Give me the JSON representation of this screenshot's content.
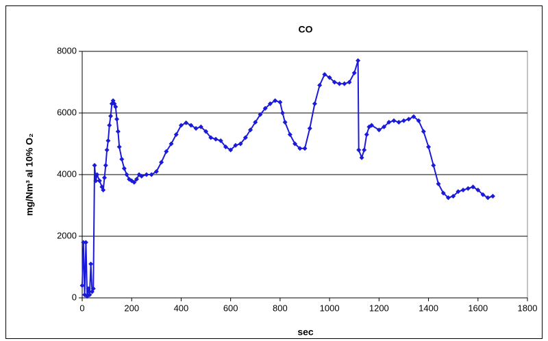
{
  "chart_data": {
    "type": "line",
    "title": "CO",
    "x_label": "sec",
    "y_label": "mg/Nm³ al 10% O₂",
    "x": [
      0,
      5,
      10,
      15,
      20,
      25,
      30,
      35,
      40,
      45,
      50,
      55,
      60,
      70,
      80,
      85,
      90,
      95,
      100,
      105,
      110,
      115,
      120,
      125,
      130,
      135,
      140,
      145,
      150,
      160,
      170,
      180,
      190,
      200,
      210,
      220,
      230,
      240,
      260,
      280,
      300,
      320,
      340,
      360,
      380,
      400,
      420,
      440,
      460,
      480,
      500,
      520,
      540,
      560,
      580,
      600,
      620,
      640,
      660,
      680,
      700,
      720,
      740,
      760,
      780,
      800,
      810,
      820,
      840,
      860,
      880,
      900,
      920,
      940,
      960,
      980,
      1000,
      1020,
      1040,
      1060,
      1080,
      1100,
      1115,
      1118,
      1130,
      1140,
      1150,
      1160,
      1170,
      1200,
      1220,
      1240,
      1260,
      1280,
      1300,
      1320,
      1340,
      1360,
      1380,
      1400,
      1420,
      1440,
      1460,
      1480,
      1500,
      1520,
      1540,
      1560,
      1580,
      1600,
      1620,
      1640,
      1660
    ],
    "series": [
      {
        "name": "CO",
        "color": "#1a1ad8",
        "values": [
          400,
          1800,
          100,
          1800,
          50,
          300,
          100,
          1100,
          200,
          300,
          4300,
          3800,
          4000,
          3800,
          3600,
          3500,
          3900,
          4300,
          4800,
          5100,
          5600,
          5900,
          6300,
          6400,
          6300,
          6200,
          5800,
          5400,
          4900,
          4500,
          4200,
          4000,
          3850,
          3800,
          3750,
          3850,
          4000,
          3950,
          4000,
          4000,
          4100,
          4400,
          4750,
          5000,
          5300,
          5600,
          5680,
          5600,
          5500,
          5550,
          5400,
          5200,
          5150,
          5100,
          4900,
          4800,
          4950,
          5000,
          5200,
          5450,
          5700,
          5950,
          6150,
          6300,
          6400,
          6350,
          6000,
          5700,
          5300,
          5000,
          4850,
          4850,
          5500,
          6300,
          6900,
          7250,
          7150,
          7000,
          6950,
          6950,
          7000,
          7300,
          7700,
          4800,
          4550,
          4800,
          5300,
          5550,
          5600,
          5450,
          5550,
          5700,
          5750,
          5700,
          5750,
          5800,
          5880,
          5750,
          5400,
          4900,
          4300,
          3700,
          3400,
          3250,
          3300,
          3450,
          3500,
          3550,
          3600,
          3500,
          3350,
          3250,
          3300
        ]
      }
    ],
    "xlim": [
      0,
      1800
    ],
    "xticks": [
      0,
      200,
      400,
      600,
      800,
      1000,
      1200,
      1400,
      1600,
      1800
    ],
    "ylim": [
      0,
      8000
    ],
    "yticks": [
      0,
      2000,
      4000,
      6000,
      8000
    ],
    "grid": true
  }
}
